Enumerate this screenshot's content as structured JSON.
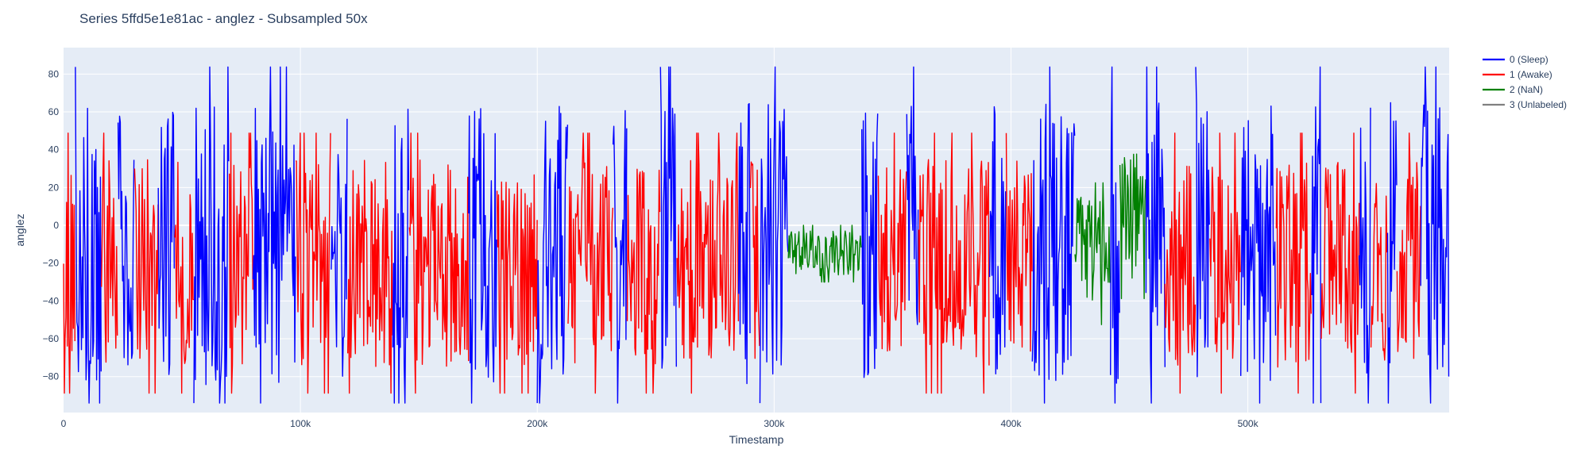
{
  "chart_data": {
    "type": "line",
    "title": "Series 5ffd5e1e81ac - anglez - Subsampled 50x",
    "xlabel": "Timestamp",
    "ylabel": "anglez",
    "xlim": [
      0,
      585000
    ],
    "ylim": [
      -99,
      94
    ],
    "x_ticks": [
      {
        "value": 0,
        "label": "0"
      },
      {
        "value": 100000,
        "label": "100k"
      },
      {
        "value": 200000,
        "label": "200k"
      },
      {
        "value": 300000,
        "label": "300k"
      },
      {
        "value": 400000,
        "label": "400k"
      },
      {
        "value": 500000,
        "label": "500k"
      }
    ],
    "y_ticks": [
      {
        "value": -80,
        "label": "−80"
      },
      {
        "value": -60,
        "label": "−60"
      },
      {
        "value": -40,
        "label": "−40"
      },
      {
        "value": -20,
        "label": "−20"
      },
      {
        "value": 0,
        "label": "0"
      },
      {
        "value": 20,
        "label": "20"
      },
      {
        "value": 40,
        "label": "40"
      },
      {
        "value": 60,
        "label": "60"
      },
      {
        "value": 80,
        "label": "80"
      }
    ],
    "grid": true,
    "legend_position": "top-right",
    "series": [
      {
        "name": "0 (Sleep)",
        "color": "#0000ff"
      },
      {
        "name": "1 (Awake)",
        "color": "#ff0000"
      },
      {
        "name": "2 (NaN)",
        "color": "#008000"
      },
      {
        "name": "3 (Unlabeled)",
        "color": "#808080"
      }
    ],
    "segments": [
      {
        "series": 1,
        "start": 0,
        "end": 5000,
        "y_center": -20,
        "y_spread": 55
      },
      {
        "series": 0,
        "start": 5000,
        "end": 16000,
        "y_center": -10,
        "y_spread": 75
      },
      {
        "series": 1,
        "start": 16000,
        "end": 23000,
        "y_center": -20,
        "y_spread": 55
      },
      {
        "series": 0,
        "start": 23000,
        "end": 30000,
        "y_center": -10,
        "y_spread": 75
      },
      {
        "series": 1,
        "start": 30000,
        "end": 40000,
        "y_center": -20,
        "y_spread": 55
      },
      {
        "series": 0,
        "start": 40000,
        "end": 47000,
        "y_center": -10,
        "y_spread": 75
      },
      {
        "series": 1,
        "start": 47000,
        "end": 55000,
        "y_center": -20,
        "y_spread": 55
      },
      {
        "series": 0,
        "start": 55000,
        "end": 70000,
        "y_center": -10,
        "y_spread": 75
      },
      {
        "series": 1,
        "start": 70000,
        "end": 80000,
        "y_center": -20,
        "y_spread": 55
      },
      {
        "series": 0,
        "start": 80000,
        "end": 98000,
        "y_center": -10,
        "y_spread": 75
      },
      {
        "series": 1,
        "start": 98000,
        "end": 113000,
        "y_center": -20,
        "y_spread": 55
      },
      {
        "series": 0,
        "start": 113000,
        "end": 120000,
        "y_center": -10,
        "y_spread": 75
      },
      {
        "series": 1,
        "start": 120000,
        "end": 139000,
        "y_center": -20,
        "y_spread": 55
      },
      {
        "series": 0,
        "start": 139000,
        "end": 146000,
        "y_center": -10,
        "y_spread": 75
      },
      {
        "series": 1,
        "start": 146000,
        "end": 171000,
        "y_center": -20,
        "y_spread": 55
      },
      {
        "series": 0,
        "start": 171000,
        "end": 183000,
        "y_center": -10,
        "y_spread": 75
      },
      {
        "series": 1,
        "start": 183000,
        "end": 200000,
        "y_center": -20,
        "y_spread": 55
      },
      {
        "series": 0,
        "start": 200000,
        "end": 213000,
        "y_center": -10,
        "y_spread": 75
      },
      {
        "series": 1,
        "start": 213000,
        "end": 232000,
        "y_center": -20,
        "y_spread": 55
      },
      {
        "series": 0,
        "start": 232000,
        "end": 238000,
        "y_center": -10,
        "y_spread": 75
      },
      {
        "series": 1,
        "start": 238000,
        "end": 252000,
        "y_center": -20,
        "y_spread": 55
      },
      {
        "series": 0,
        "start": 252000,
        "end": 259000,
        "y_center": -10,
        "y_spread": 75
      },
      {
        "series": 1,
        "start": 259000,
        "end": 285000,
        "y_center": -20,
        "y_spread": 55
      },
      {
        "series": 0,
        "start": 285000,
        "end": 290000,
        "y_center": -10,
        "y_spread": 75
      },
      {
        "series": 1,
        "start": 290000,
        "end": 294000,
        "y_center": -20,
        "y_spread": 55
      },
      {
        "series": 0,
        "start": 294000,
        "end": 306000,
        "y_center": -10,
        "y_spread": 75
      },
      {
        "series": 2,
        "start": 306000,
        "end": 337000,
        "y_center": -15,
        "y_spread": 12
      },
      {
        "series": 0,
        "start": 337000,
        "end": 344000,
        "y_center": -10,
        "y_spread": 75
      },
      {
        "series": 1,
        "start": 344000,
        "end": 356000,
        "y_center": -20,
        "y_spread": 55
      },
      {
        "series": 0,
        "start": 356000,
        "end": 361000,
        "y_center": -10,
        "y_spread": 75
      },
      {
        "series": 1,
        "start": 361000,
        "end": 391000,
        "y_center": -20,
        "y_spread": 55
      },
      {
        "series": 0,
        "start": 391000,
        "end": 398000,
        "y_center": -10,
        "y_spread": 75
      },
      {
        "series": 1,
        "start": 398000,
        "end": 409000,
        "y_center": -20,
        "y_spread": 55
      },
      {
        "series": 0,
        "start": 409000,
        "end": 427000,
        "y_center": -10,
        "y_spread": 75
      },
      {
        "series": 2,
        "start": 427000,
        "end": 442000,
        "y_center": -15,
        "y_spread": 30
      },
      {
        "series": 0,
        "start": 442000,
        "end": 446000,
        "y_center": -10,
        "y_spread": 75
      },
      {
        "series": 2,
        "start": 446000,
        "end": 457000,
        "y_center": 5,
        "y_spread": 35
      },
      {
        "series": 0,
        "start": 457000,
        "end": 465000,
        "y_center": -10,
        "y_spread": 75
      },
      {
        "series": 1,
        "start": 465000,
        "end": 478000,
        "y_center": -20,
        "y_spread": 55
      },
      {
        "series": 0,
        "start": 478000,
        "end": 484000,
        "y_center": -10,
        "y_spread": 75
      },
      {
        "series": 1,
        "start": 484000,
        "end": 497000,
        "y_center": -20,
        "y_spread": 55
      },
      {
        "series": 0,
        "start": 497000,
        "end": 512000,
        "y_center": -10,
        "y_spread": 75
      },
      {
        "series": 1,
        "start": 512000,
        "end": 527000,
        "y_center": -20,
        "y_spread": 55
      },
      {
        "series": 0,
        "start": 527000,
        "end": 531000,
        "y_center": -10,
        "y_spread": 75
      },
      {
        "series": 1,
        "start": 531000,
        "end": 547000,
        "y_center": -20,
        "y_spread": 55
      },
      {
        "series": 0,
        "start": 547000,
        "end": 552000,
        "y_center": -10,
        "y_spread": 75
      },
      {
        "series": 1,
        "start": 552000,
        "end": 559000,
        "y_center": -20,
        "y_spread": 55
      },
      {
        "series": 0,
        "start": 559000,
        "end": 563000,
        "y_center": -10,
        "y_spread": 75
      },
      {
        "series": 1,
        "start": 563000,
        "end": 573000,
        "y_center": -20,
        "y_spread": 55
      },
      {
        "series": 0,
        "start": 573000,
        "end": 585000,
        "y_center": -10,
        "y_spread": 75
      }
    ]
  }
}
